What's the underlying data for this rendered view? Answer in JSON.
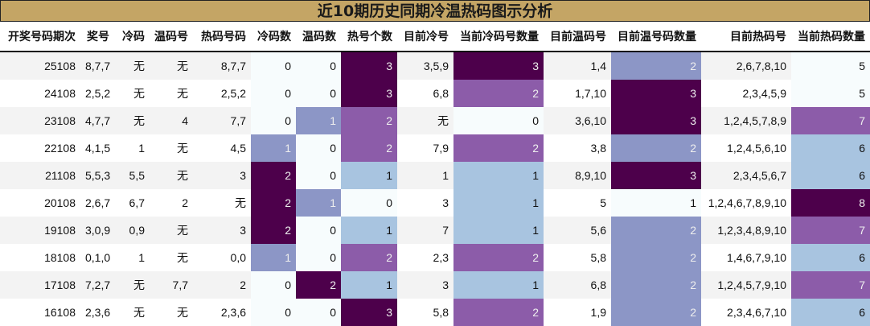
{
  "title": "近10期历史同期冷温热码图示分析",
  "columns": [
    "开奖号码期次",
    "奖号",
    "冷码",
    "温码号",
    "热码号码",
    "冷码数",
    "温码数",
    "热号个数",
    "目前冷号",
    "当前冷码号数量",
    "目前温码号",
    "目前温号码数量",
    "目前热码号",
    "当前热码数量"
  ],
  "palette": {
    "lightest": "#f7fcfd",
    "light_blue": "#a8c4e0",
    "periwinkle": "#8c96c6",
    "medium_purple": "#8c5ca9",
    "dark_purple": "#4d004b"
  },
  "heat_columns": {
    "5": {
      "0": "lightest",
      "1": "periwinkle",
      "2": "dark_purple"
    },
    "6": {
      "0": "lightest",
      "1": "periwinkle",
      "2": "dark_purple"
    },
    "7": {
      "0": "lightest",
      "1": "light_blue",
      "2": "medium_purple",
      "3": "dark_purple"
    },
    "9": {
      "0": "lightest",
      "1": "light_blue",
      "2": "medium_purple",
      "3": "dark_purple"
    },
    "11": {
      "1": "lightest",
      "2": "periwinkle",
      "3": "dark_purple"
    },
    "13": {
      "5": "lightest",
      "6": "light_blue",
      "7": "medium_purple",
      "8": "dark_purple"
    }
  },
  "rows": [
    [
      "25108",
      "8,7,7",
      "无",
      "无",
      "8,7,7",
      "0",
      "0",
      "3",
      "3,5,9",
      "3",
      "1,4",
      "2",
      "2,6,7,8,10",
      "5"
    ],
    [
      "24108",
      "2,5,2",
      "无",
      "无",
      "2,5,2",
      "0",
      "0",
      "3",
      "6,8",
      "2",
      "1,7,10",
      "3",
      "2,3,4,5,9",
      "5"
    ],
    [
      "23108",
      "4,7,7",
      "无",
      "4",
      "7,7",
      "0",
      "1",
      "2",
      "无",
      "0",
      "3,6,10",
      "3",
      "1,2,4,5,7,8,9",
      "7"
    ],
    [
      "22108",
      "4,1,5",
      "1",
      "无",
      "4,5",
      "1",
      "0",
      "2",
      "7,9",
      "2",
      "3,8",
      "2",
      "1,2,4,5,6,10",
      "6"
    ],
    [
      "21108",
      "5,5,3",
      "5,5",
      "无",
      "3",
      "2",
      "0",
      "1",
      "1",
      "1",
      "8,9,10",
      "3",
      "2,3,4,5,6,7",
      "6"
    ],
    [
      "20108",
      "2,6,7",
      "6,7",
      "2",
      "无",
      "2",
      "1",
      "0",
      "3",
      "1",
      "5",
      "1",
      "1,2,4,6,7,8,9,10",
      "8"
    ],
    [
      "19108",
      "3,0,9",
      "0,9",
      "无",
      "3",
      "2",
      "0",
      "1",
      "7",
      "1",
      "5,6",
      "2",
      "1,2,3,4,8,9,10",
      "7"
    ],
    [
      "18108",
      "0,1,0",
      "1",
      "无",
      "0,0",
      "1",
      "0",
      "2",
      "2,3",
      "2",
      "5,8",
      "2",
      "1,4,6,7,9,10",
      "6"
    ],
    [
      "17108",
      "7,2,7",
      "无",
      "7,7",
      "2",
      "0",
      "2",
      "1",
      "3",
      "1",
      "6,8",
      "2",
      "1,2,4,5,7,9,10",
      "7"
    ],
    [
      "16108",
      "2,3,6",
      "无",
      "无",
      "2,3,6",
      "0",
      "0",
      "3",
      "5,8",
      "2",
      "1,9",
      "2",
      "2,3,4,6,7,10",
      "6"
    ]
  ]
}
